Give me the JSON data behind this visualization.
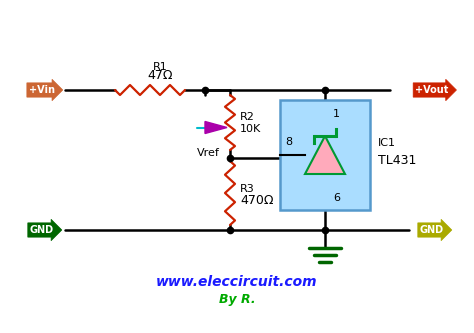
{
  "background_color": "#ffffff",
  "title_text": "www.eleccircuit.com",
  "subtitle_text": "By R.",
  "title_color": "#1a1aff",
  "subtitle_color": "#00aa00",
  "title_fontsize": 10,
  "subtitle_fontsize": 9,
  "vin_label": "+Vin",
  "vout_label": "+Vout",
  "gnd_left_label": "GND",
  "gnd_right_label": "GND",
  "vin_color": "#cc6633",
  "vout_color": "#cc2200",
  "gnd_left_color": "#006600",
  "gnd_right_color": "#aaaa00",
  "r1_label": "R1",
  "r1_val": "47Ω",
  "r2_label": "R2",
  "r2_val": "10K",
  "r3_label": "R3",
  "r3_val": "470Ω",
  "ic_label1": "IC1",
  "ic_label2": "TL431",
  "vref_label": "Vref",
  "pin1_label": "1",
  "pin6_label": "6",
  "pin8_label": "8",
  "wire_color": "#000000",
  "resistor_color": "#cc2200",
  "ic_box_color": "#aaddff",
  "ic_box_edge": "#5599cc",
  "diode_body_color": "#ffaabb",
  "diode_zener_color": "#009933",
  "wiper_color": "#aa00aa",
  "wiper_cyan": "#00bbcc"
}
